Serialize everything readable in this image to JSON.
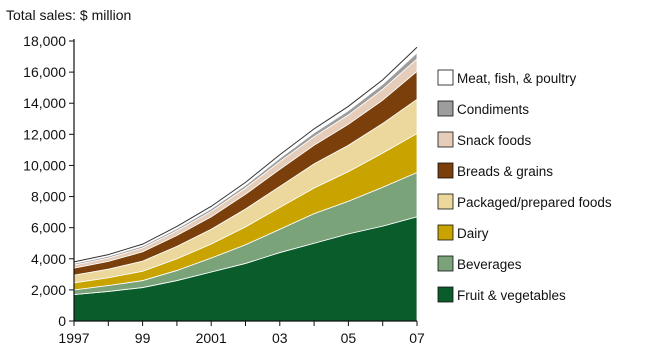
{
  "chart_data": {
    "type": "area",
    "stacked": true,
    "ylabel": "Total sales: $ million",
    "x": [
      1997,
      1998,
      1999,
      2000,
      2001,
      2002,
      2003,
      2004,
      2005,
      2006,
      2007
    ],
    "x_tick_labels": [
      {
        "x": 1997,
        "label": "1997"
      },
      {
        "x": 1999,
        "label": "99"
      },
      {
        "x": 2001,
        "label": "2001"
      },
      {
        "x": 2003,
        "label": "03"
      },
      {
        "x": 2005,
        "label": "05"
      },
      {
        "x": 2007,
        "label": "07"
      }
    ],
    "ylim": [
      0,
      18000
    ],
    "y_ticks": [
      0,
      2000,
      4000,
      6000,
      8000,
      10000,
      12000,
      14000,
      16000,
      18000
    ],
    "y_tick_labels": [
      "0",
      "2,000",
      "4,000",
      "6,000",
      "8,000",
      "10,000",
      "12,000",
      "14,000",
      "16,000",
      "18,000"
    ],
    "grid": false,
    "legend_position": "right",
    "series": [
      {
        "name": "Fruit & vegetables",
        "color": "#0b5c2b",
        "values": [
          1700,
          1900,
          2150,
          2600,
          3150,
          3700,
          4400,
          5000,
          5600,
          6100,
          6700
        ]
      },
      {
        "name": "Beverages",
        "color": "#7aa37a",
        "values": [
          300,
          380,
          450,
          650,
          900,
          1200,
          1500,
          1900,
          2100,
          2500,
          2850
        ]
      },
      {
        "name": "Dairy",
        "color": "#c9a400",
        "values": [
          450,
          500,
          600,
          750,
          900,
          1150,
          1400,
          1650,
          1900,
          2200,
          2500
        ]
      },
      {
        "name": "Packaged/prepared foods",
        "color": "#ecd89c",
        "values": [
          500,
          550,
          650,
          800,
          950,
          1150,
          1350,
          1550,
          1700,
          1900,
          2200
        ]
      },
      {
        "name": "Breads & grains",
        "color": "#7a3f0a",
        "values": [
          450,
          500,
          600,
          700,
          800,
          950,
          1100,
          1200,
          1350,
          1500,
          1800
        ]
      },
      {
        "name": "Snack foods",
        "color": "#e6cdb9",
        "values": [
          200,
          220,
          250,
          300,
          350,
          400,
          500,
          550,
          600,
          700,
          800
        ]
      },
      {
        "name": "Condiments",
        "color": "#9d9d9d",
        "values": [
          100,
          110,
          120,
          140,
          160,
          180,
          220,
          250,
          280,
          320,
          400
        ]
      },
      {
        "name": "Meat, fish, & poultry",
        "color": "#ffffff",
        "values": [
          100,
          110,
          120,
          140,
          160,
          180,
          220,
          250,
          270,
          280,
          350
        ]
      }
    ]
  }
}
